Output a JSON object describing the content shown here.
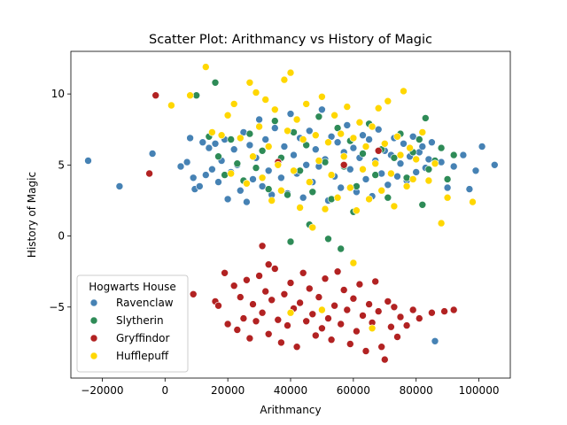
{
  "chart_data": {
    "type": "scatter",
    "title": "Scatter Plot: Arithmancy vs History of Magic",
    "xlabel": "Arithmancy",
    "ylabel": "History of Magic",
    "xlim": [
      -30000,
      110000
    ],
    "ylim": [
      -10,
      13
    ],
    "xticks": [
      -20000,
      0,
      20000,
      40000,
      60000,
      80000,
      100000
    ],
    "xtick_labels": [
      "−20000",
      "0",
      "20000",
      "40000",
      "60000",
      "80000",
      "100000"
    ],
    "yticks": [
      -5,
      0,
      5,
      10
    ],
    "ytick_labels": [
      "−5",
      "0",
      "5",
      "10"
    ],
    "grid": false,
    "legend": {
      "title": "Hogwarts House",
      "placement": "lower-left"
    },
    "series": [
      {
        "name": "Ravenclaw",
        "color": "#4682b4",
        "points": [
          [
            -24500,
            5.3
          ],
          [
            -14500,
            3.5
          ],
          [
            -4000,
            5.8
          ],
          [
            5000,
            4.9
          ],
          [
            7000,
            5.2
          ],
          [
            8000,
            6.9
          ],
          [
            9000,
            4.1
          ],
          [
            9500,
            3.3
          ],
          [
            11000,
            3.5
          ],
          [
            12000,
            6.6
          ],
          [
            13000,
            4.3
          ],
          [
            14000,
            6.2
          ],
          [
            15000,
            4.7
          ],
          [
            16000,
            6.5
          ],
          [
            17000,
            3.8
          ],
          [
            18000,
            5.3
          ],
          [
            19000,
            6.8
          ],
          [
            20000,
            2.6
          ],
          [
            21000,
            4.5
          ],
          [
            22000,
            6.1
          ],
          [
            23000,
            5.0
          ],
          [
            24000,
            3.2
          ],
          [
            25000,
            7.3
          ],
          [
            26000,
            2.4
          ],
          [
            27000,
            6.4
          ],
          [
            28000,
            4.0
          ],
          [
            29000,
            5.5
          ],
          [
            30000,
            8.2
          ],
          [
            31000,
            3.5
          ],
          [
            32000,
            6.8
          ],
          [
            33000,
            4.6
          ],
          [
            34000,
            2.9
          ],
          [
            35000,
            7.6
          ],
          [
            36000,
            5.2
          ],
          [
            37000,
            4.1
          ],
          [
            38000,
            6.3
          ],
          [
            39000,
            3.0
          ],
          [
            40000,
            8.6
          ],
          [
            41000,
            5.7
          ],
          [
            42000,
            4.4
          ],
          [
            43000,
            6.9
          ],
          [
            44000,
            2.7
          ],
          [
            45000,
            5.0
          ],
          [
            46000,
            7.4
          ],
          [
            47000,
            3.8
          ],
          [
            48000,
            6.1
          ],
          [
            49000,
            4.9
          ],
          [
            50000,
            8.9
          ],
          [
            51000,
            5.4
          ],
          [
            52000,
            2.5
          ],
          [
            53000,
            7.0
          ],
          [
            54000,
            4.2
          ],
          [
            55000,
            6.6
          ],
          [
            56000,
            3.4
          ],
          [
            57000,
            5.9
          ],
          [
            58000,
            7.8
          ],
          [
            59000,
            4.7
          ],
          [
            60000,
            6.2
          ],
          [
            61000,
            3.1
          ],
          [
            62000,
            5.5
          ],
          [
            63000,
            7.1
          ],
          [
            64000,
            4.0
          ],
          [
            65000,
            6.8
          ],
          [
            66000,
            2.8
          ],
          [
            67000,
            5.3
          ],
          [
            68000,
            7.5
          ],
          [
            69000,
            4.4
          ],
          [
            70000,
            6.0
          ],
          [
            71000,
            3.6
          ],
          [
            72000,
            5.7
          ],
          [
            73000,
            6.9
          ],
          [
            74000,
            4.2
          ],
          [
            75000,
            5.1
          ],
          [
            76000,
            6.5
          ],
          [
            77000,
            3.9
          ],
          [
            78000,
            5.6
          ],
          [
            79000,
            7.0
          ],
          [
            80000,
            4.5
          ],
          [
            81000,
            5.9
          ],
          [
            82000,
            6.3
          ],
          [
            83000,
            4.8
          ],
          [
            84000,
            5.4
          ],
          [
            85000,
            6.6
          ],
          [
            86000,
            -7.4
          ],
          [
            88000,
            5.2
          ],
          [
            90000,
            3.4
          ],
          [
            92000,
            4.9
          ],
          [
            95000,
            5.7
          ],
          [
            97000,
            3.3
          ],
          [
            99000,
            4.6
          ],
          [
            101000,
            6.3
          ],
          [
            105000,
            5.0
          ]
        ]
      },
      {
        "name": "Slytherin",
        "color": "#2e8b57",
        "points": [
          [
            10000,
            9.9
          ],
          [
            16000,
            10.8
          ],
          [
            14000,
            7.0
          ],
          [
            17000,
            5.6
          ],
          [
            19000,
            4.3
          ],
          [
            21000,
            6.8
          ],
          [
            23000,
            5.1
          ],
          [
            25000,
            3.9
          ],
          [
            27000,
            7.2
          ],
          [
            29000,
            4.8
          ],
          [
            31000,
            6.0
          ],
          [
            33000,
            3.3
          ],
          [
            35000,
            8.1
          ],
          [
            37000,
            5.5
          ],
          [
            39000,
            2.9
          ],
          [
            41000,
            7.3
          ],
          [
            43000,
            4.6
          ],
          [
            45000,
            6.4
          ],
          [
            47000,
            3.1
          ],
          [
            49000,
            8.4
          ],
          [
            51000,
            5.2
          ],
          [
            53000,
            2.6
          ],
          [
            55000,
            7.6
          ],
          [
            57000,
            4.9
          ],
          [
            59000,
            6.7
          ],
          [
            61000,
            3.5
          ],
          [
            63000,
            5.8
          ],
          [
            65000,
            7.9
          ],
          [
            67000,
            4.3
          ],
          [
            69000,
            6.1
          ],
          [
            71000,
            2.7
          ],
          [
            73000,
            5.5
          ],
          [
            75000,
            7.2
          ],
          [
            77000,
            4.1
          ],
          [
            79000,
            5.9
          ],
          [
            81000,
            6.8
          ],
          [
            82000,
            2.2
          ],
          [
            83000,
            8.3
          ],
          [
            84000,
            4.7
          ],
          [
            86000,
            5.3
          ],
          [
            88000,
            6.2
          ],
          [
            90000,
            4.0
          ],
          [
            92000,
            5.7
          ],
          [
            40000,
            -0.4
          ],
          [
            52000,
            -0.2
          ],
          [
            56000,
            -0.9
          ],
          [
            46000,
            0.8
          ],
          [
            60000,
            1.7
          ]
        ]
      },
      {
        "name": "Gryffindor",
        "color": "#b22222",
        "points": [
          [
            -3000,
            9.9
          ],
          [
            -5000,
            4.4
          ],
          [
            9000,
            -4.1
          ],
          [
            16000,
            -4.6
          ],
          [
            17000,
            -4.9
          ],
          [
            19000,
            -2.6
          ],
          [
            20000,
            -6.2
          ],
          [
            22000,
            -3.5
          ],
          [
            23000,
            -6.6
          ],
          [
            24000,
            -4.3
          ],
          [
            25000,
            -5.8
          ],
          [
            26000,
            -3.1
          ],
          [
            27000,
            -7.2
          ],
          [
            28000,
            -4.8
          ],
          [
            29000,
            -6.0
          ],
          [
            30000,
            -2.8
          ],
          [
            31000,
            -5.4
          ],
          [
            32000,
            -3.9
          ],
          [
            33000,
            -6.9
          ],
          [
            34000,
            -4.5
          ],
          [
            35000,
            -2.3
          ],
          [
            36000,
            -5.9
          ],
          [
            37000,
            -7.5
          ],
          [
            38000,
            -4.1
          ],
          [
            39000,
            -6.3
          ],
          [
            40000,
            -3.3
          ],
          [
            41000,
            -5.1
          ],
          [
            42000,
            -7.8
          ],
          [
            43000,
            -4.7
          ],
          [
            44000,
            -2.6
          ],
          [
            45000,
            -6.0
          ],
          [
            46000,
            -3.7
          ],
          [
            47000,
            -5.5
          ],
          [
            48000,
            -7.0
          ],
          [
            49000,
            -4.3
          ],
          [
            50000,
            -6.5
          ],
          [
            51000,
            -3.0
          ],
          [
            52000,
            -5.8
          ],
          [
            53000,
            -7.3
          ],
          [
            54000,
            -4.9
          ],
          [
            55000,
            -2.5
          ],
          [
            56000,
            -6.2
          ],
          [
            57000,
            -3.8
          ],
          [
            58000,
            -5.2
          ],
          [
            59000,
            -7.6
          ],
          [
            60000,
            -4.4
          ],
          [
            61000,
            -6.7
          ],
          [
            62000,
            -3.4
          ],
          [
            63000,
            -5.6
          ],
          [
            64000,
            -8.1
          ],
          [
            65000,
            -4.8
          ],
          [
            66000,
            -6.1
          ],
          [
            67000,
            -3.2
          ],
          [
            68000,
            -5.3
          ],
          [
            69000,
            -7.8
          ],
          [
            70000,
            -8.7
          ],
          [
            71000,
            -4.6
          ],
          [
            72000,
            -6.4
          ],
          [
            73000,
            -5.0
          ],
          [
            74000,
            -7.1
          ],
          [
            75000,
            -5.7
          ],
          [
            77000,
            -6.3
          ],
          [
            79000,
            -5.2
          ],
          [
            81000,
            -5.8
          ],
          [
            85000,
            -5.4
          ],
          [
            89000,
            -5.3
          ],
          [
            92000,
            -5.2
          ],
          [
            31000,
            -0.7
          ],
          [
            33000,
            -2.0
          ],
          [
            57000,
            5.0
          ],
          [
            68000,
            6.0
          ],
          [
            36000,
            5.2
          ]
        ]
      },
      {
        "name": "Hufflepuff",
        "color": "#ffd700",
        "points": [
          [
            2000,
            9.2
          ],
          [
            8000,
            9.9
          ],
          [
            13000,
            11.9
          ],
          [
            15000,
            7.3
          ],
          [
            18000,
            7.1
          ],
          [
            20000,
            8.5
          ],
          [
            21000,
            4.4
          ],
          [
            22000,
            9.3
          ],
          [
            24000,
            6.9
          ],
          [
            26000,
            3.7
          ],
          [
            27000,
            10.8
          ],
          [
            28000,
            5.6
          ],
          [
            29000,
            10.1
          ],
          [
            30000,
            7.7
          ],
          [
            31000,
            4.1
          ],
          [
            32000,
            9.6
          ],
          [
            33000,
            6.3
          ],
          [
            34000,
            2.5
          ],
          [
            35000,
            8.9
          ],
          [
            36000,
            5.0
          ],
          [
            37000,
            3.2
          ],
          [
            38000,
            11.0
          ],
          [
            39000,
            7.4
          ],
          [
            40000,
            11.5
          ],
          [
            41000,
            4.6
          ],
          [
            42000,
            8.2
          ],
          [
            43000,
            2.0
          ],
          [
            44000,
            6.8
          ],
          [
            45000,
            9.3
          ],
          [
            46000,
            3.8
          ],
          [
            47000,
            0.6
          ],
          [
            48000,
            7.1
          ],
          [
            49000,
            5.3
          ],
          [
            50000,
            9.8
          ],
          [
            51000,
            1.9
          ],
          [
            52000,
            6.6
          ],
          [
            53000,
            4.3
          ],
          [
            54000,
            8.5
          ],
          [
            55000,
            2.7
          ],
          [
            56000,
            7.2
          ],
          [
            57000,
            5.6
          ],
          [
            58000,
            9.1
          ],
          [
            59000,
            3.4
          ],
          [
            60000,
            6.9
          ],
          [
            61000,
            1.8
          ],
          [
            62000,
            8.0
          ],
          [
            63000,
            4.7
          ],
          [
            64000,
            6.3
          ],
          [
            65000,
            2.6
          ],
          [
            66000,
            7.7
          ],
          [
            67000,
            5.1
          ],
          [
            68000,
            9.0
          ],
          [
            69000,
            3.2
          ],
          [
            70000,
            6.5
          ],
          [
            71000,
            9.5
          ],
          [
            72000,
            4.4
          ],
          [
            73000,
            2.1
          ],
          [
            74000,
            7.0
          ],
          [
            75000,
            5.7
          ],
          [
            76000,
            10.2
          ],
          [
            77000,
            3.5
          ],
          [
            78000,
            6.2
          ],
          [
            79000,
            4.0
          ],
          [
            80000,
            5.4
          ],
          [
            82000,
            7.3
          ],
          [
            84000,
            3.9
          ],
          [
            86000,
            5.1
          ],
          [
            88000,
            0.9
          ],
          [
            90000,
            2.7
          ],
          [
            98000,
            2.4
          ],
          [
            60000,
            -1.9
          ],
          [
            40000,
            -5.4
          ],
          [
            50000,
            -5.2
          ],
          [
            66000,
            -6.5
          ]
        ]
      }
    ]
  }
}
